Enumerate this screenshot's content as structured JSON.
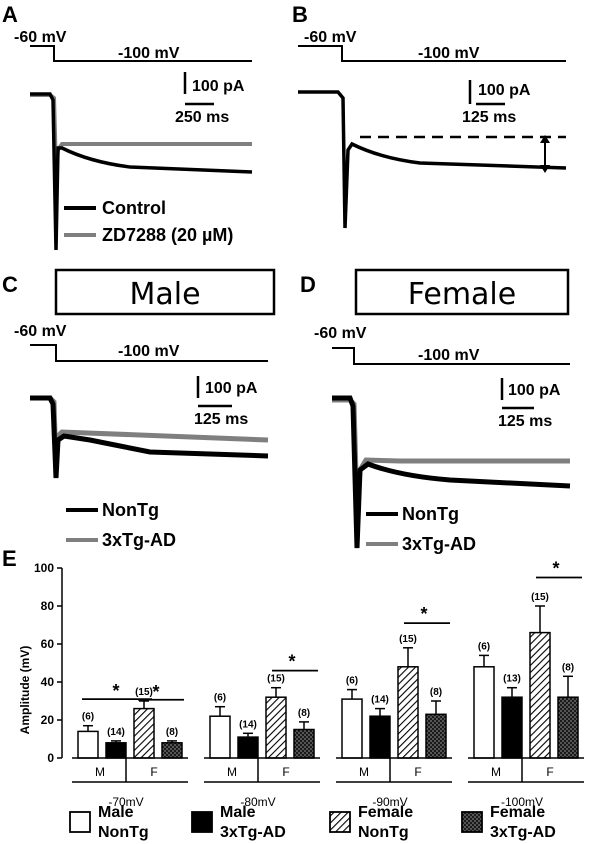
{
  "panels": {
    "A": {
      "letter": "A",
      "hold_v": "-60 mV",
      "step_v": "-100 mV",
      "scale_y": "100 pA",
      "scale_x": "250 ms",
      "legend": [
        "Control",
        "ZD7288 (20 µM)"
      ]
    },
    "B": {
      "letter": "B",
      "hold_v": "-60 mV",
      "step_v": "-100 mV",
      "scale_y": "100 pA",
      "scale_x": "125 ms"
    },
    "C": {
      "letter": "C",
      "title": "Male",
      "hold_v": "-60 mV",
      "step_v": "-100 mV",
      "scale_y": "100 pA",
      "scale_x": "125 ms",
      "legend": [
        "NonTg",
        "3xTg-AD"
      ]
    },
    "D": {
      "letter": "D",
      "title": "Female",
      "hold_v": "-60 mV",
      "step_v": "-100 mV",
      "scale_y": "100 pA",
      "scale_x": "125 ms",
      "legend": [
        "NonTg",
        "3xTg-AD"
      ]
    },
    "E": {
      "letter": "E"
    }
  },
  "colors": {
    "control": "#000000",
    "treated": "#7f7f7f"
  },
  "chart_data": {
    "type": "bar",
    "ylabel": "Amplitude (mV)",
    "ylim": [
      0,
      100
    ],
    "yticks": [
      "0",
      "20",
      "40",
      "60",
      "80",
      "100"
    ],
    "sex_labels": [
      "M",
      "F"
    ],
    "groups": [
      {
        "voltage": "-70mV",
        "values": [
          14,
          8,
          26,
          8
        ],
        "errors": [
          3,
          1,
          4,
          1
        ],
        "n": [
          "(6)",
          "(14)",
          "(15)",
          "(8)"
        ],
        "sig_labels": [
          "*",
          "*"
        ]
      },
      {
        "voltage": "-80mV",
        "values": [
          22,
          11,
          32,
          15
        ],
        "errors": [
          5,
          2,
          5,
          4
        ],
        "n": [
          "(6)",
          "(14)",
          "(15)",
          "(8)"
        ],
        "sig_labels": [
          "*"
        ]
      },
      {
        "voltage": "-90mV",
        "values": [
          31,
          22,
          48,
          23
        ],
        "errors": [
          5,
          4,
          10,
          7
        ],
        "n": [
          "(6)",
          "(14)",
          "(15)",
          "(8)"
        ],
        "sig_labels": [
          "*"
        ]
      },
      {
        "voltage": "-100mV",
        "values": [
          48,
          32,
          66,
          32
        ],
        "errors": [
          6,
          5,
          14,
          11
        ],
        "n": [
          "(6)",
          "(13)",
          "(15)",
          "(8)"
        ],
        "sig_labels": [
          "*"
        ]
      }
    ],
    "legend": [
      {
        "line1": "Male",
        "line2": "NonTg",
        "fill": "white"
      },
      {
        "line1": "Male",
        "line2": "3xTg-AD",
        "fill": "black"
      },
      {
        "line1": "Female",
        "line2": "NonTg",
        "fill": "hatch"
      },
      {
        "line1": "Female",
        "line2": "3xTg-AD",
        "fill": "checker"
      }
    ]
  }
}
